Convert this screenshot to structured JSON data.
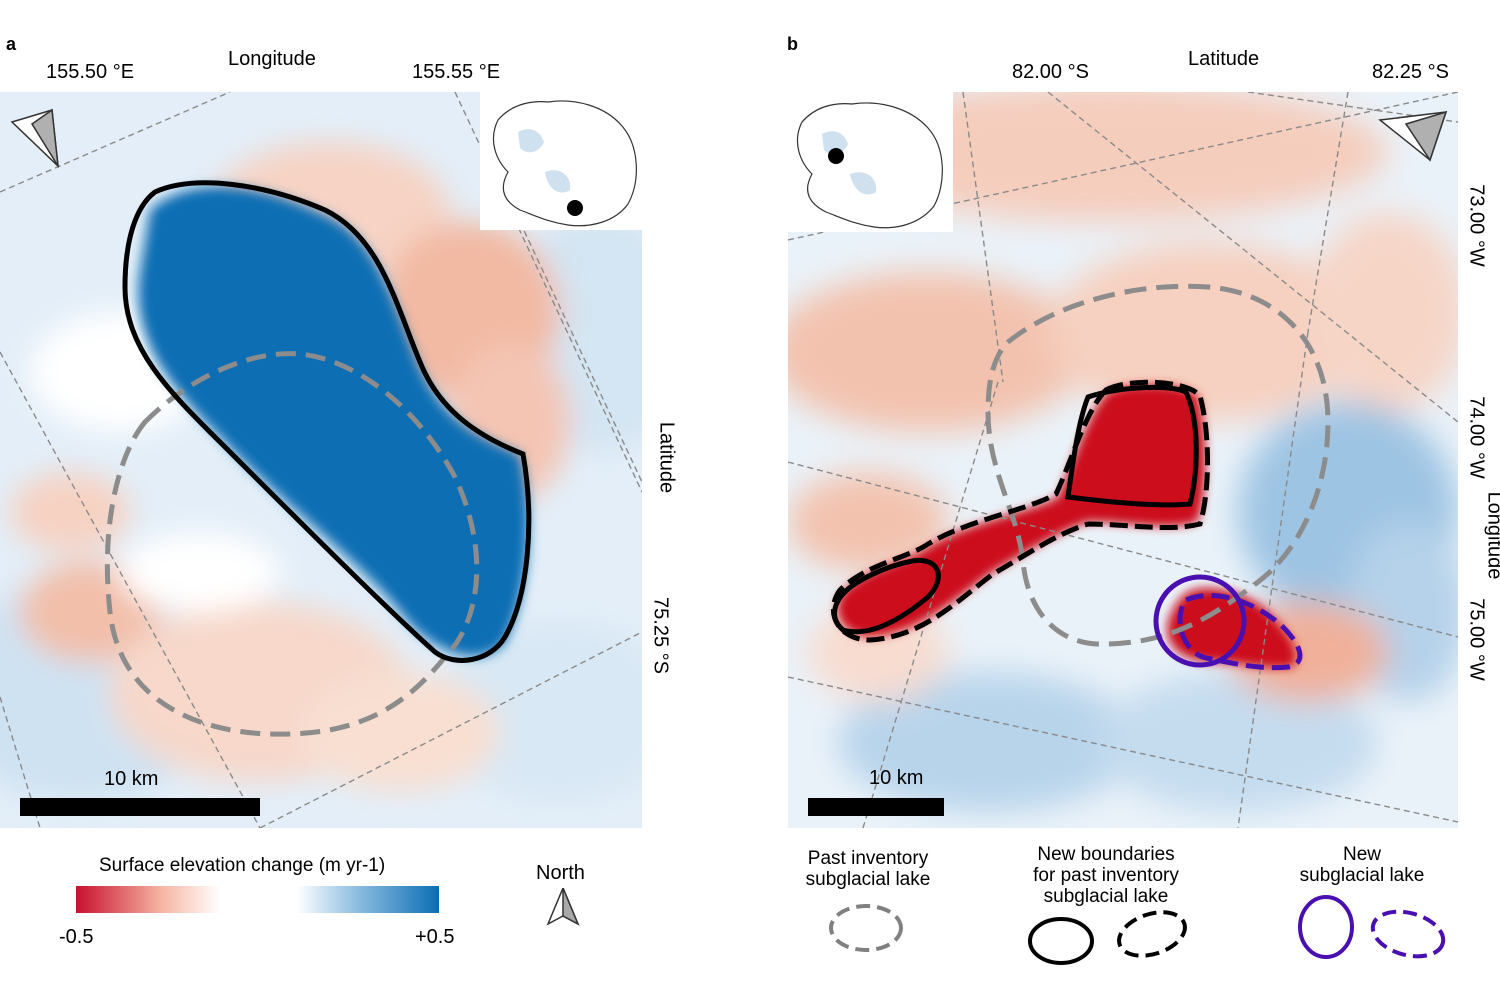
{
  "panel_a": {
    "letter": "a",
    "top_axis_title": "Longitude",
    "top_ticks": [
      "155.50 °E",
      "155.55 °E"
    ],
    "right_axis_title": "Latitude",
    "right_ticks": [
      "75.25 °S"
    ],
    "scale_bar_label": "10 km",
    "inset_marker": "location-dot"
  },
  "panel_b": {
    "letter": "b",
    "top_axis_title": "Latitude",
    "top_ticks": [
      "82.00 °S",
      "82.25 °S"
    ],
    "right_axis_title": "Longitude",
    "right_ticks": [
      "73.00 °W",
      "74.00 °W",
      "75.00 °W"
    ],
    "scale_bar_label": "10 km"
  },
  "colorbar": {
    "title": "Surface elevation change (m yr-1)",
    "min_label": "-0.5",
    "max_label": "+0.5",
    "min": -0.5,
    "max": 0.5,
    "colors": {
      "negative": "#c8102e",
      "neutral": "#ffffff",
      "positive": "#0a6eb4"
    }
  },
  "north_arrow": {
    "label": "North",
    "icon": "north-arrow-icon"
  },
  "legend": {
    "past": {
      "label_line1": "Past inventory",
      "label_line2": "subglacial lake",
      "color": "#808080"
    },
    "new_boundaries": {
      "label_line1": "New boundaries",
      "label_line2": "for past inventory",
      "label_line3": "subglacial lake",
      "color": "#000000"
    },
    "new_lake": {
      "label_line1": "New",
      "label_line2": "subglacial lake",
      "color": "#4a0fb0"
    }
  }
}
